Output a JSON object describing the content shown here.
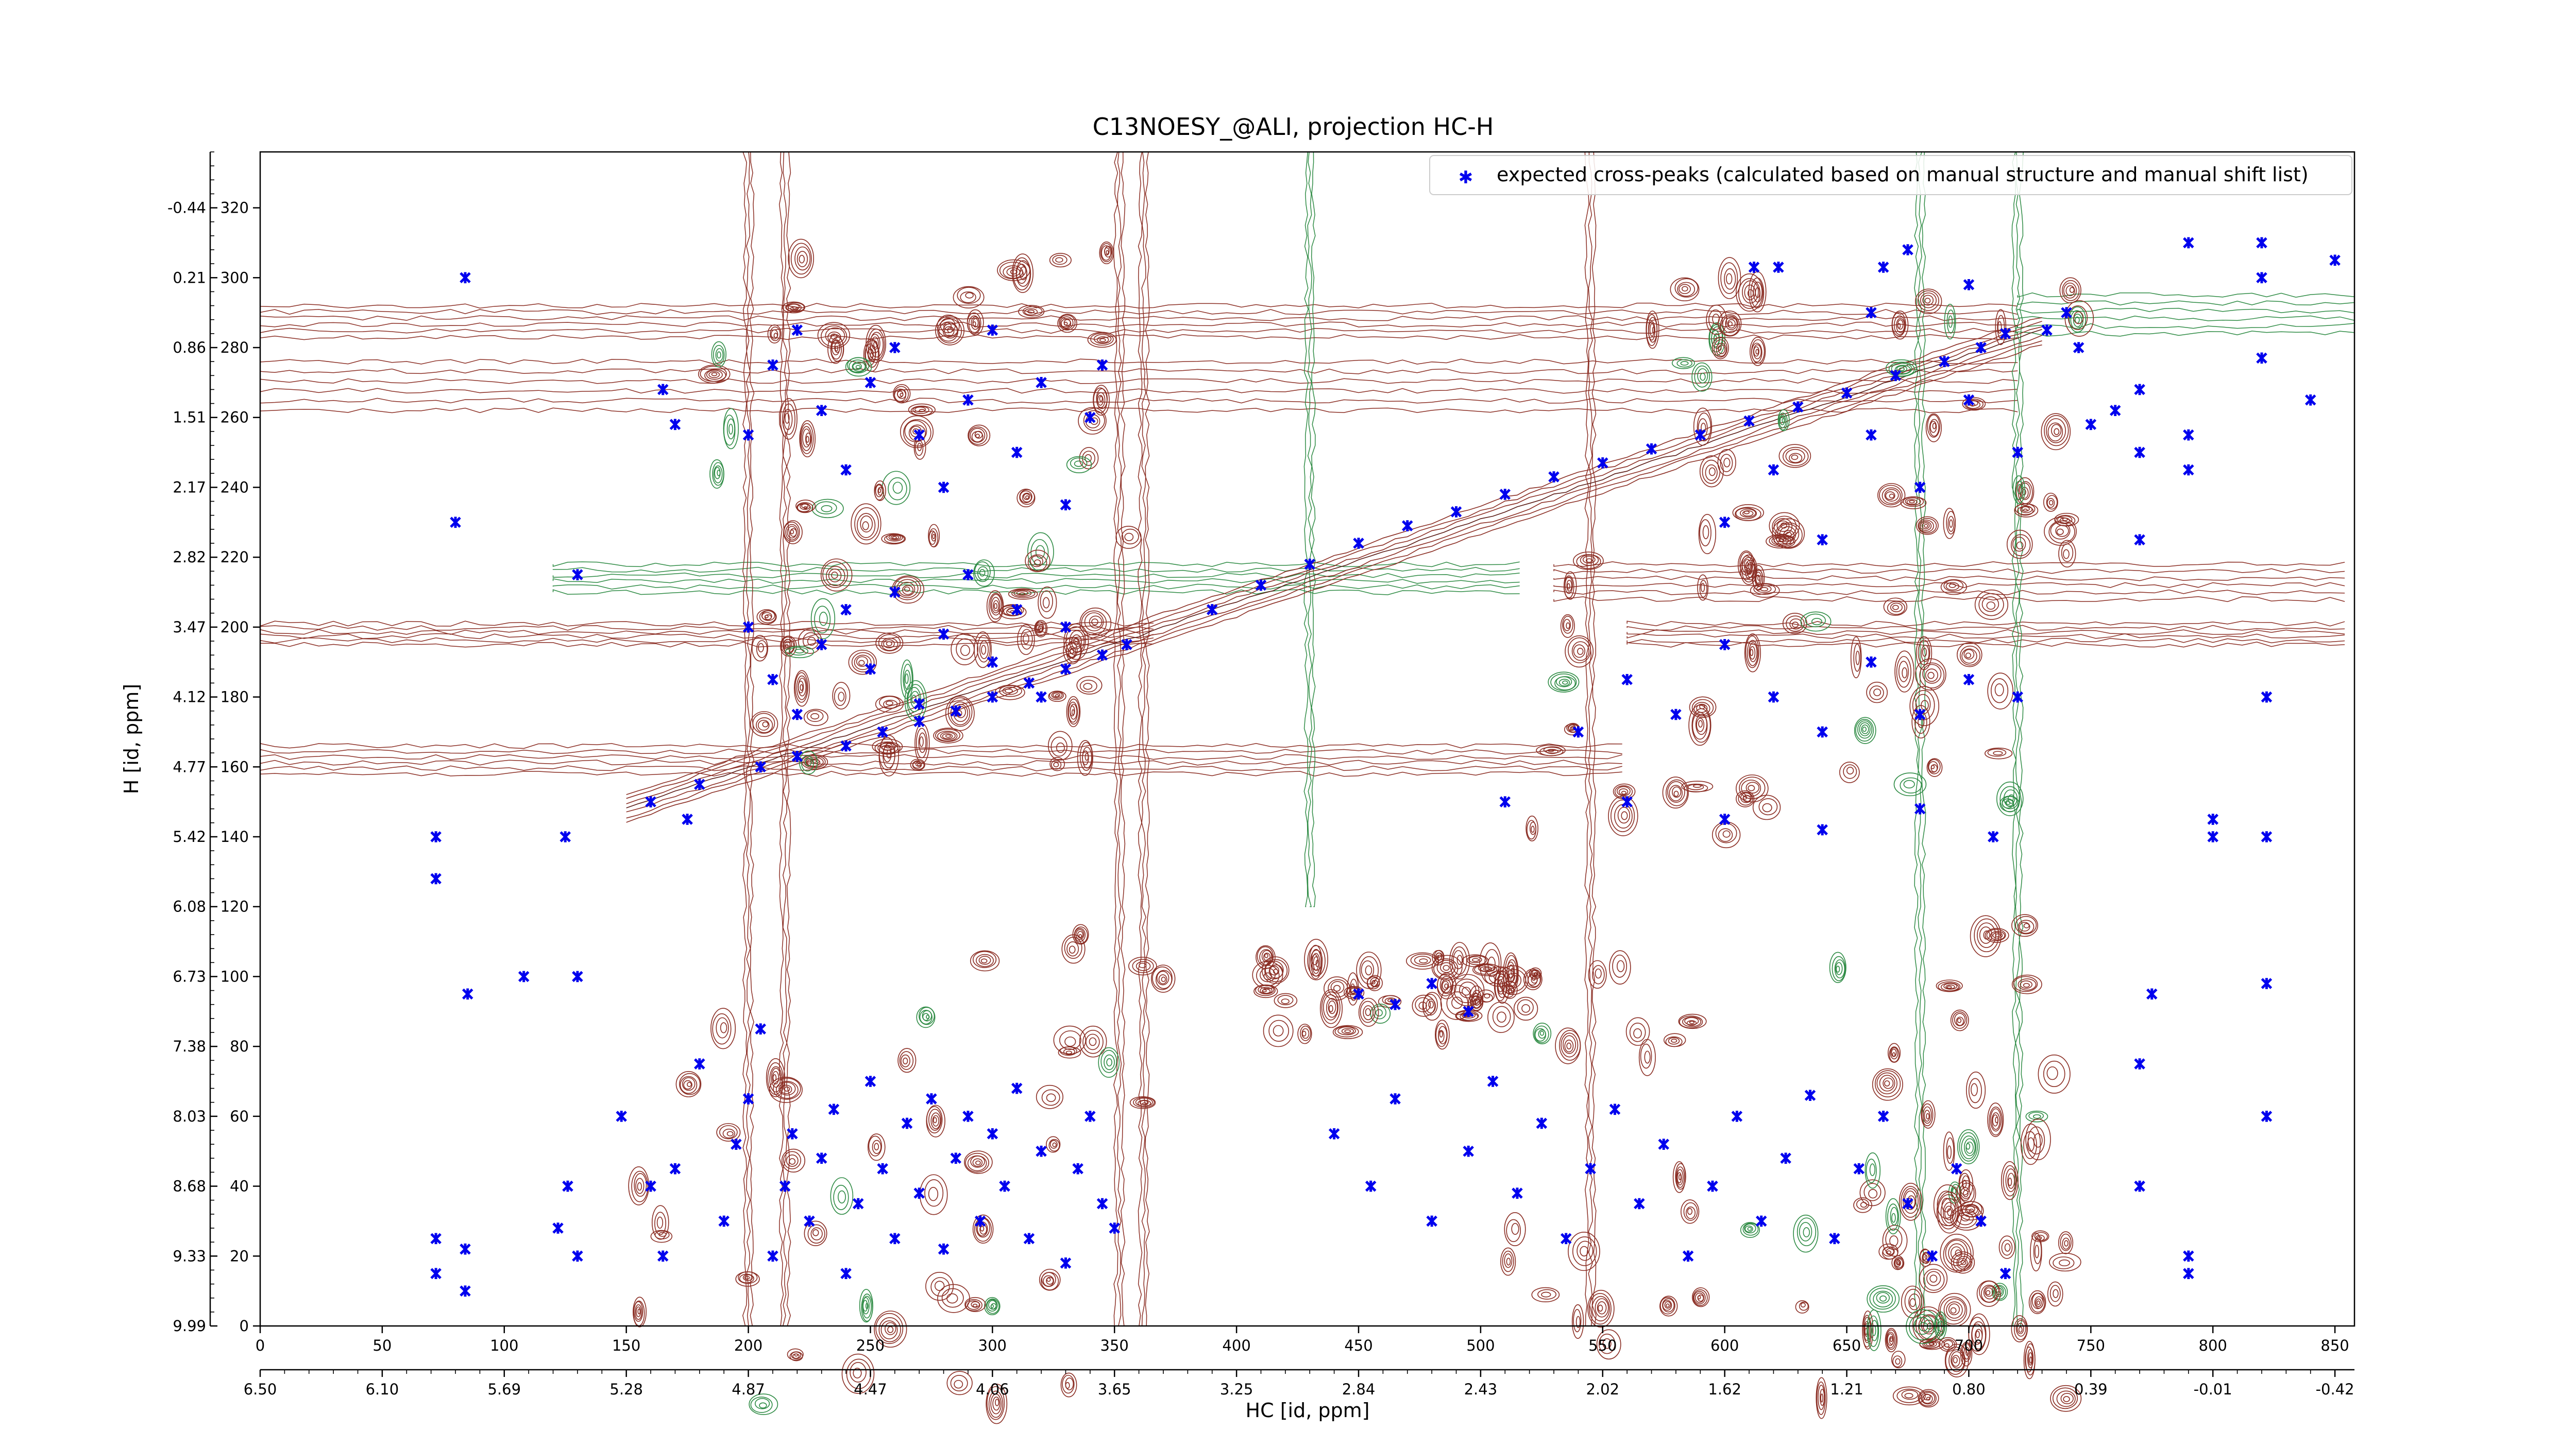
{
  "chart_data": {
    "type": "scatter",
    "title": "C13NOESY_@ALI, projection HC-H",
    "xlabel": "HC [id, ppm]",
    "ylabel": "H [id, ppm]",
    "x_index_ticks": [
      0,
      50,
      100,
      150,
      200,
      250,
      300,
      350,
      400,
      450,
      500,
      550,
      600,
      650,
      700,
      750,
      800,
      850
    ],
    "x_ppm_ticks": [
      "6.50",
      "6.10",
      "5.69",
      "5.28",
      "4.87",
      "4.47",
      "4.06",
      "3.65",
      "3.25",
      "2.84",
      "2.43",
      "2.02",
      "1.62",
      "1.21",
      "0.80",
      "0.39",
      "-0.01",
      "-0.42"
    ],
    "y_index_ticks": [
      0,
      20,
      40,
      60,
      80,
      100,
      120,
      140,
      160,
      180,
      200,
      220,
      240,
      260,
      280,
      300,
      320
    ],
    "y_ppm_ticks": [
      "9.99",
      "9.33",
      "8.68",
      "8.03",
      "7.38",
      "6.73",
      "6.08",
      "5.42",
      "4.77",
      "4.12",
      "3.47",
      "2.82",
      "2.17",
      "1.51",
      "0.86",
      "0.21",
      "-0.44"
    ],
    "xlim": [
      0,
      858
    ],
    "ylim": [
      0,
      336
    ],
    "legend": {
      "placement": "top-right",
      "entries": [
        "expected cross-peaks (calculated based on manual structure and manual shift list)"
      ]
    },
    "colors": {
      "positive_contours": "#8b2e24",
      "negative_contours": "#2e8b44",
      "peaks": "#0000ee"
    },
    "series": [
      {
        "marker": "x",
        "diagonal_peaks": [
          [
            160,
            150
          ],
          [
            180,
            155
          ],
          [
            205,
            160
          ],
          [
            220,
            163
          ],
          [
            240,
            166
          ],
          [
            255,
            170
          ],
          [
            270,
            173
          ],
          [
            285,
            176
          ],
          [
            300,
            180
          ],
          [
            315,
            184
          ],
          [
            330,
            188
          ],
          [
            345,
            192
          ],
          [
            355,
            195
          ],
          [
            390,
            205
          ],
          [
            410,
            212
          ],
          [
            430,
            218
          ],
          [
            450,
            224
          ],
          [
            470,
            229
          ],
          [
            490,
            233
          ],
          [
            510,
            238
          ],
          [
            530,
            243
          ],
          [
            550,
            247
          ],
          [
            570,
            251
          ],
          [
            590,
            255
          ],
          [
            610,
            259
          ],
          [
            630,
            263
          ],
          [
            650,
            267
          ],
          [
            670,
            272
          ],
          [
            690,
            276
          ],
          [
            705,
            280
          ],
          [
            715,
            284
          ]
        ],
        "cross_peaks": [
          [
            72,
            15
          ],
          [
            72,
            25
          ],
          [
            84,
            10
          ],
          [
            84,
            22
          ],
          [
            85,
            95
          ],
          [
            72,
            140
          ],
          [
            72,
            128
          ],
          [
            80,
            230
          ],
          [
            84,
            300
          ],
          [
            108,
            100
          ],
          [
            122,
            28
          ],
          [
            126,
            40
          ],
          [
            130,
            20
          ],
          [
            125,
            140
          ],
          [
            130,
            100
          ],
          [
            130,
            215
          ],
          [
            148,
            60
          ],
          [
            160,
            40
          ],
          [
            165,
            20
          ],
          [
            170,
            45
          ],
          [
            175,
            145
          ],
          [
            165,
            268
          ],
          [
            170,
            258
          ],
          [
            180,
            75
          ],
          [
            190,
            30
          ],
          [
            195,
            52
          ],
          [
            200,
            65
          ],
          [
            205,
            85
          ],
          [
            210,
            20
          ],
          [
            215,
            40
          ],
          [
            218,
            55
          ],
          [
            225,
            30
          ],
          [
            230,
            48
          ],
          [
            235,
            62
          ],
          [
            240,
            15
          ],
          [
            245,
            35
          ],
          [
            250,
            70
          ],
          [
            255,
            45
          ],
          [
            260,
            25
          ],
          [
            265,
            58
          ],
          [
            270,
            38
          ],
          [
            275,
            65
          ],
          [
            280,
            22
          ],
          [
            285,
            48
          ],
          [
            290,
            60
          ],
          [
            295,
            30
          ],
          [
            300,
            55
          ],
          [
            305,
            40
          ],
          [
            310,
            68
          ],
          [
            315,
            25
          ],
          [
            320,
            50
          ],
          [
            330,
            18
          ],
          [
            335,
            45
          ],
          [
            340,
            60
          ],
          [
            345,
            35
          ],
          [
            350,
            28
          ],
          [
            200,
            255
          ],
          [
            210,
            275
          ],
          [
            220,
            285
          ],
          [
            230,
            262
          ],
          [
            240,
            245
          ],
          [
            250,
            270
          ],
          [
            260,
            280
          ],
          [
            270,
            255
          ],
          [
            280,
            240
          ],
          [
            290,
            265
          ],
          [
            300,
            285
          ],
          [
            310,
            250
          ],
          [
            320,
            270
          ],
          [
            330,
            235
          ],
          [
            340,
            260
          ],
          [
            345,
            275
          ],
          [
            200,
            200
          ],
          [
            210,
            185
          ],
          [
            220,
            175
          ],
          [
            230,
            195
          ],
          [
            240,
            205
          ],
          [
            250,
            188
          ],
          [
            260,
            210
          ],
          [
            270,
            178
          ],
          [
            280,
            198
          ],
          [
            290,
            215
          ],
          [
            300,
            190
          ],
          [
            310,
            205
          ],
          [
            320,
            180
          ],
          [
            330,
            200
          ],
          [
            440,
            55
          ],
          [
            455,
            40
          ],
          [
            465,
            65
          ],
          [
            480,
            30
          ],
          [
            495,
            50
          ],
          [
            505,
            70
          ],
          [
            515,
            38
          ],
          [
            525,
            58
          ],
          [
            535,
            25
          ],
          [
            545,
            45
          ],
          [
            555,
            62
          ],
          [
            565,
            35
          ],
          [
            575,
            52
          ],
          [
            585,
            20
          ],
          [
            595,
            40
          ],
          [
            605,
            60
          ],
          [
            615,
            30
          ],
          [
            625,
            48
          ],
          [
            635,
            66
          ],
          [
            645,
            25
          ],
          [
            655,
            45
          ],
          [
            665,
            60
          ],
          [
            675,
            35
          ],
          [
            685,
            20
          ],
          [
            695,
            45
          ],
          [
            705,
            30
          ],
          [
            715,
            15
          ],
          [
            450,
            95
          ],
          [
            465,
            92
          ],
          [
            480,
            98
          ],
          [
            495,
            90
          ],
          [
            510,
            150
          ],
          [
            560,
            150
          ],
          [
            600,
            145
          ],
          [
            640,
            142
          ],
          [
            680,
            148
          ],
          [
            710,
            140
          ],
          [
            540,
            170
          ],
          [
            560,
            185
          ],
          [
            580,
            175
          ],
          [
            600,
            195
          ],
          [
            620,
            180
          ],
          [
            640,
            170
          ],
          [
            660,
            190
          ],
          [
            680,
            175
          ],
          [
            700,
            185
          ],
          [
            720,
            180
          ],
          [
            600,
            230
          ],
          [
            620,
            245
          ],
          [
            640,
            225
          ],
          [
            660,
            255
          ],
          [
            680,
            240
          ],
          [
            700,
            265
          ],
          [
            720,
            250
          ],
          [
            750,
            258
          ],
          [
            760,
            262
          ],
          [
            660,
            290
          ],
          [
            700,
            298
          ],
          [
            740,
            290
          ],
          [
            770,
            225
          ],
          [
            770,
            250
          ],
          [
            770,
            268
          ],
          [
            790,
            245
          ],
          [
            790,
            255
          ],
          [
            790,
            310
          ],
          [
            820,
            300
          ],
          [
            820,
            310
          ],
          [
            850,
            305
          ],
          [
            770,
            40
          ],
          [
            770,
            75
          ],
          [
            775,
            95
          ],
          [
            790,
            20
          ],
          [
            790,
            15
          ],
          [
            800,
            140
          ],
          [
            800,
            145
          ],
          [
            822,
            60
          ],
          [
            822,
            98
          ],
          [
            822,
            140
          ],
          [
            822,
            180
          ],
          [
            612,
            303
          ],
          [
            622,
            303
          ],
          [
            665,
            303
          ],
          [
            675,
            308
          ],
          [
            732,
            285
          ],
          [
            745,
            280
          ],
          [
            820,
            277
          ],
          [
            840,
            265
          ]
        ]
      }
    ]
  }
}
